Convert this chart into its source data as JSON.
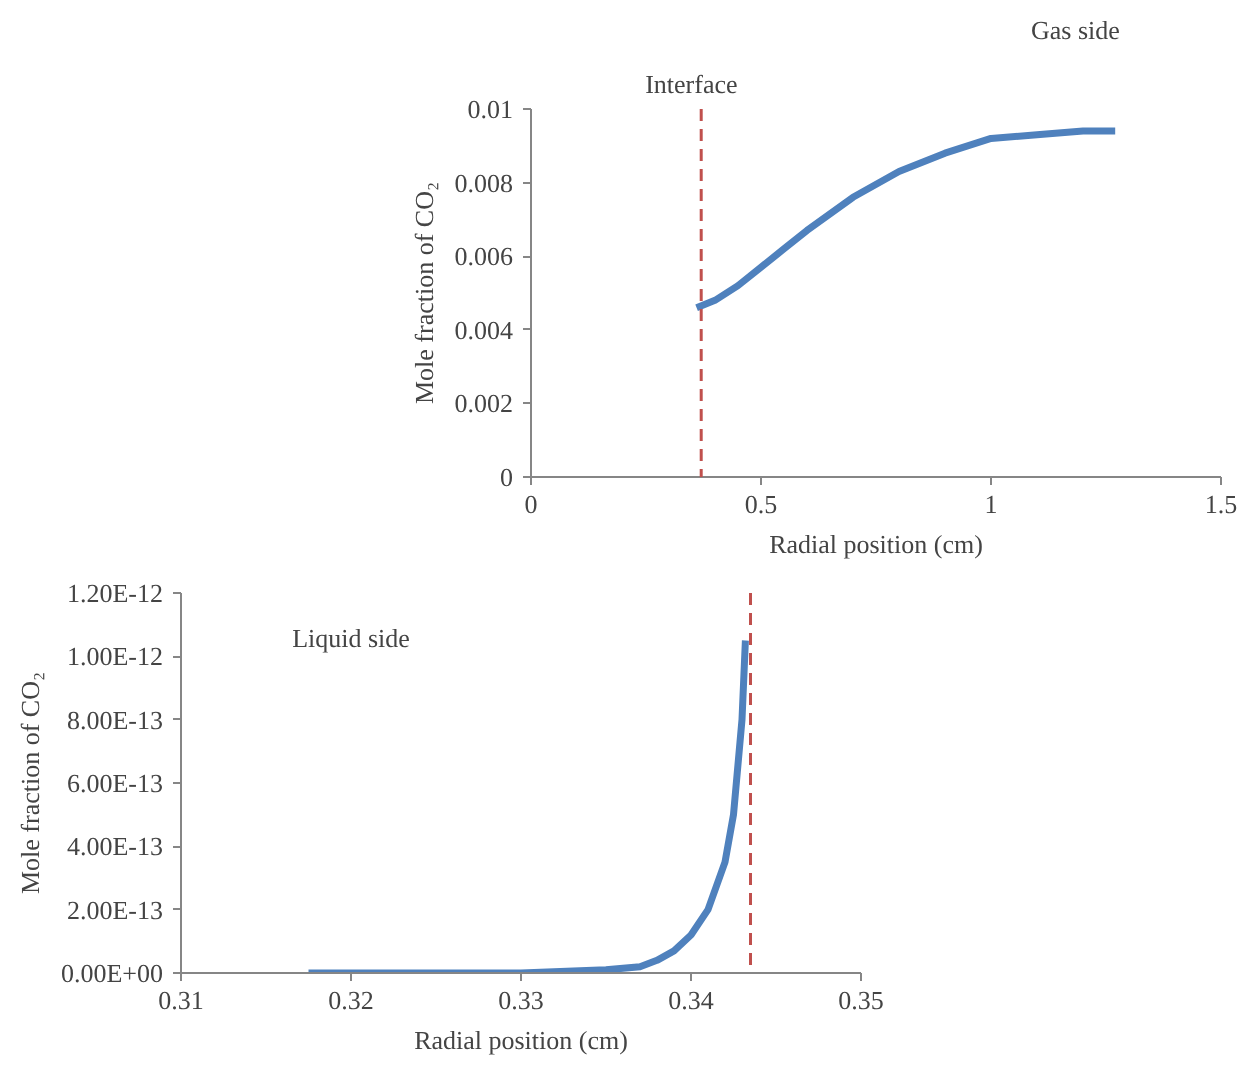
{
  "chart_data": [
    {
      "type": "line",
      "xlabel": "Radial position (cm)",
      "ylabel": "Mole fraction of CO₂",
      "xlim": [
        0,
        1.5
      ],
      "ylim": [
        0,
        0.01
      ],
      "xticks": [
        0,
        0.5,
        1,
        1.5
      ],
      "yticks": [
        0,
        0.002,
        0.004,
        0.006,
        0.008,
        0.01
      ],
      "grid": false,
      "marker": "none",
      "line_style": "solid",
      "x": [
        0.36,
        0.4,
        0.45,
        0.5,
        0.55,
        0.6,
        0.7,
        0.8,
        0.9,
        1.0,
        1.1,
        1.2,
        1.27
      ],
      "series": [
        {
          "color": "#4f81bd",
          "values": [
            0.0046,
            0.0048,
            0.0052,
            0.0057,
            0.0062,
            0.0067,
            0.0076,
            0.0083,
            0.0088,
            0.0092,
            0.0093,
            0.0094,
            0.0094
          ]
        }
      ],
      "ref_lines": [
        {
          "axis": "x",
          "value": 0.37,
          "label": "Interface",
          "color": "#c0504d",
          "line_style": "dashed"
        }
      ],
      "annotations": [
        "Gas side"
      ]
    },
    {
      "type": "line",
      "xlabel": "Radial position (cm)",
      "ylabel": "Mole fraction of CO₂",
      "xlim": [
        0.31,
        0.35
      ],
      "ylim": [
        0,
        1.2e-12
      ],
      "xticks": [
        0.31,
        0.32,
        0.33,
        0.34,
        0.35
      ],
      "yticks": [
        {
          "value": 0,
          "label": "0.00E+00"
        },
        {
          "value": 2e-13,
          "label": "2.00E-13"
        },
        {
          "value": 4e-13,
          "label": "4.00E-13"
        },
        {
          "value": 6e-13,
          "label": "6.00E-13"
        },
        {
          "value": 8e-13,
          "label": "8.00E-13"
        },
        {
          "value": 1e-12,
          "label": "1.00E-12"
        },
        {
          "value": 1.2e-12,
          "label": "1.20E-12"
        }
      ],
      "grid": false,
      "marker": "none",
      "line_style": "solid",
      "x": [
        0.3175,
        0.325,
        0.33,
        0.335,
        0.337,
        0.338,
        0.339,
        0.34,
        0.341,
        0.342,
        0.3425,
        0.343,
        0.3432
      ],
      "series": [
        {
          "color": "#4f81bd",
          "values": [
            0,
            0,
            0,
            1e-14,
            2e-14,
            4e-14,
            7e-14,
            1.2e-13,
            2e-13,
            3.5e-13,
            5e-13,
            8e-13,
            1.05e-12
          ]
        }
      ],
      "ref_lines": [
        {
          "axis": "x",
          "value": 0.3435,
          "label": null,
          "color": "#c0504d",
          "line_style": "dashed"
        }
      ],
      "annotations": [
        "Liquid side"
      ]
    }
  ]
}
